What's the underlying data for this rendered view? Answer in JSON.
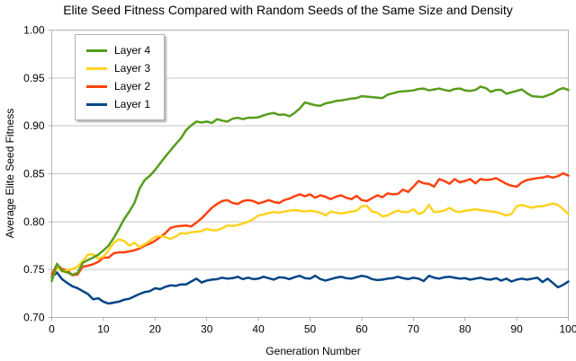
{
  "chart_data": {
    "type": "line",
    "title": "Elite Seed Fitness Compared with Random Seeds of the Same Size and Density",
    "xlabel": "Generation Number",
    "ylabel": "Average Elite Seed Fitness",
    "xlim": [
      0,
      100
    ],
    "ylim": [
      0.7,
      1.0
    ],
    "x_ticks": [
      0,
      10,
      20,
      30,
      40,
      50,
      60,
      70,
      80,
      90,
      100
    ],
    "y_ticks": [
      0.7,
      0.75,
      0.8,
      0.85,
      0.9,
      0.95,
      1.0
    ],
    "grid": "horizontal-only",
    "legend_position": "top-left-inside",
    "x_start": 0,
    "x_step": 1,
    "series": [
      {
        "name": "Layer 4",
        "color": "#579d1c",
        "values": [
          0.738,
          0.756,
          0.7485,
          0.747,
          0.7445,
          0.7465,
          0.757,
          0.76,
          0.7625,
          0.7655,
          0.77,
          0.775,
          0.783,
          0.7925,
          0.8025,
          0.8105,
          0.8195,
          0.8345,
          0.8435,
          0.848,
          0.854,
          0.861,
          0.868,
          0.8745,
          0.881,
          0.887,
          0.8955,
          0.9005,
          0.9045,
          0.9035,
          0.9045,
          0.903,
          0.907,
          0.9055,
          0.9045,
          0.9075,
          0.9085,
          0.907,
          0.9085,
          0.9085,
          0.909,
          0.911,
          0.9125,
          0.9135,
          0.9115,
          0.912,
          0.91,
          0.9135,
          0.918,
          0.9245,
          0.923,
          0.9215,
          0.921,
          0.9235,
          0.9245,
          0.926,
          0.9265,
          0.9275,
          0.9285,
          0.929,
          0.931,
          0.9305,
          0.93,
          0.9295,
          0.929,
          0.9325,
          0.934,
          0.9355,
          0.936,
          0.9365,
          0.937,
          0.9385,
          0.939,
          0.937,
          0.938,
          0.939,
          0.9375,
          0.9365,
          0.9385,
          0.939,
          0.937,
          0.9365,
          0.9375,
          0.941,
          0.9395,
          0.9355,
          0.9375,
          0.9375,
          0.9335,
          0.935,
          0.9365,
          0.938,
          0.934,
          0.931,
          0.9305,
          0.93,
          0.932,
          0.934,
          0.9375,
          0.9395,
          0.9375
        ]
      },
      {
        "name": "Layer 3",
        "color": "#ffd320",
        "values": [
          0.74,
          0.7525,
          0.748,
          0.7495,
          0.7505,
          0.753,
          0.759,
          0.7655,
          0.766,
          0.7615,
          0.7635,
          0.77,
          0.778,
          0.7815,
          0.78,
          0.775,
          0.778,
          0.7735,
          0.7765,
          0.78,
          0.784,
          0.785,
          0.784,
          0.782,
          0.7845,
          0.788,
          0.7875,
          0.789,
          0.7895,
          0.79,
          0.7925,
          0.791,
          0.791,
          0.793,
          0.796,
          0.7955,
          0.7965,
          0.798,
          0.8,
          0.8025,
          0.8065,
          0.8075,
          0.809,
          0.81,
          0.8095,
          0.8105,
          0.8115,
          0.812,
          0.8115,
          0.8105,
          0.8115,
          0.8105,
          0.8095,
          0.8065,
          0.8105,
          0.8095,
          0.8085,
          0.8095,
          0.8105,
          0.8115,
          0.816,
          0.8165,
          0.8105,
          0.8095,
          0.8055,
          0.8065,
          0.8095,
          0.8115,
          0.81,
          0.81,
          0.813,
          0.808,
          0.81,
          0.8175,
          0.81,
          0.8105,
          0.8115,
          0.8145,
          0.811,
          0.81,
          0.8115,
          0.812,
          0.813,
          0.812,
          0.8115,
          0.8105,
          0.81,
          0.8085,
          0.8065,
          0.808,
          0.816,
          0.8175,
          0.816,
          0.8145,
          0.816,
          0.816,
          0.8175,
          0.819,
          0.8175,
          0.813,
          0.808
        ]
      },
      {
        "name": "Layer 2",
        "color": "#ff420e",
        "values": [
          0.745,
          0.755,
          0.7505,
          0.7495,
          0.744,
          0.745,
          0.753,
          0.754,
          0.7555,
          0.758,
          0.7625,
          0.7625,
          0.767,
          0.768,
          0.768,
          0.769,
          0.77,
          0.772,
          0.775,
          0.777,
          0.78,
          0.784,
          0.788,
          0.7935,
          0.795,
          0.7955,
          0.796,
          0.795,
          0.799,
          0.8035,
          0.809,
          0.8145,
          0.8185,
          0.8215,
          0.8225,
          0.8195,
          0.8185,
          0.8215,
          0.8225,
          0.8215,
          0.819,
          0.8205,
          0.8225,
          0.8205,
          0.8195,
          0.8225,
          0.824,
          0.8265,
          0.8285,
          0.8265,
          0.8285,
          0.825,
          0.8275,
          0.826,
          0.8235,
          0.826,
          0.8275,
          0.825,
          0.8235,
          0.827,
          0.8225,
          0.8215,
          0.8245,
          0.8275,
          0.8255,
          0.8295,
          0.8285,
          0.829,
          0.8335,
          0.831,
          0.8365,
          0.8425,
          0.84,
          0.8395,
          0.8365,
          0.8445,
          0.8425,
          0.8395,
          0.8445,
          0.841,
          0.8425,
          0.8445,
          0.84,
          0.8445,
          0.8435,
          0.844,
          0.8455,
          0.8425,
          0.8395,
          0.8375,
          0.8365,
          0.841,
          0.8435,
          0.8445,
          0.8455,
          0.846,
          0.8475,
          0.846,
          0.8475,
          0.8505,
          0.848
        ]
      },
      {
        "name": "Layer 1",
        "color": "#004586",
        "values": [
          0.742,
          0.747,
          0.74,
          0.736,
          0.7325,
          0.7305,
          0.7275,
          0.7245,
          0.719,
          0.72,
          0.7165,
          0.7145,
          0.7155,
          0.7165,
          0.7185,
          0.7195,
          0.722,
          0.7245,
          0.7265,
          0.7275,
          0.7305,
          0.7295,
          0.732,
          0.7335,
          0.733,
          0.7345,
          0.7345,
          0.7375,
          0.7405,
          0.7365,
          0.7385,
          0.7395,
          0.74,
          0.7415,
          0.7405,
          0.741,
          0.7425,
          0.74,
          0.7415,
          0.74,
          0.7405,
          0.7425,
          0.741,
          0.7395,
          0.742,
          0.7415,
          0.74,
          0.742,
          0.7435,
          0.741,
          0.7405,
          0.7435,
          0.74,
          0.7385,
          0.74,
          0.7415,
          0.7425,
          0.741,
          0.7405,
          0.742,
          0.7435,
          0.7425,
          0.74,
          0.739,
          0.7395,
          0.7405,
          0.741,
          0.7425,
          0.741,
          0.74,
          0.7415,
          0.7405,
          0.738,
          0.7435,
          0.7415,
          0.7405,
          0.742,
          0.7425,
          0.7415,
          0.7405,
          0.741,
          0.7395,
          0.7405,
          0.7415,
          0.74,
          0.7395,
          0.741,
          0.7385,
          0.7405,
          0.7375,
          0.7395,
          0.7405,
          0.7395,
          0.7405,
          0.7415,
          0.737,
          0.7405,
          0.736,
          0.7315,
          0.734,
          0.7375
        ]
      }
    ],
    "style": {
      "grid_color": "#c6c6c6",
      "axis_color": "#b3b3b3",
      "text_color": "#000000",
      "background": "#ffffff",
      "line_width": 2.5
    }
  }
}
